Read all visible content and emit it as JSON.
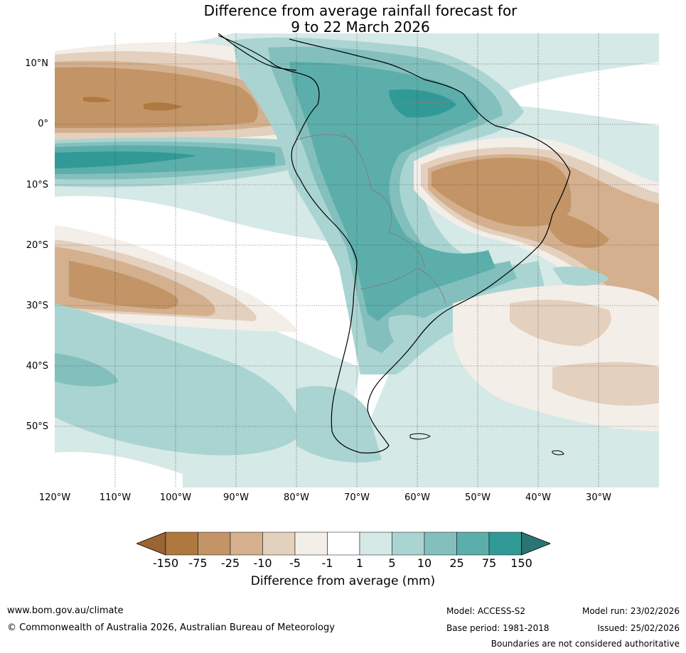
{
  "title": {
    "line1": "Difference from average rainfall forecast for",
    "line2": "9 to 22 March 2026"
  },
  "map": {
    "lat_labels": [
      "10°N",
      "0°",
      "10°S",
      "20°S",
      "30°S",
      "40°S",
      "50°S"
    ],
    "lon_labels": [
      "120°W",
      "110°W",
      "100°W",
      "90°W",
      "80°W",
      "70°W",
      "60°W",
      "50°W",
      "40°W",
      "30°W"
    ]
  },
  "colorbar": {
    "title": "Difference from average (mm)",
    "ticks": [
      "-150",
      "-75",
      "-25",
      "-10",
      "-5",
      "-1",
      "1",
      "5",
      "10",
      "25",
      "75",
      "150"
    ],
    "colors": [
      "#9c6333",
      "#ae783f",
      "#c29466",
      "#d4b08f",
      "#e4d0be",
      "#f3eee8",
      "#ffffff",
      "#d5e9e7",
      "#aad4d2",
      "#83c0bd",
      "#5caeab",
      "#319a96",
      "#2a7572"
    ]
  },
  "footer": {
    "website": "www.bom.gov.au/climate",
    "copyright": "© Commonwealth of Australia 2026, Australian Bureau of Meteorology",
    "model": "Model: ACCESS-S2",
    "base_period": "Base period: 1981-2018",
    "model_run": "Model run: 23/02/2026",
    "issued": "Issued: 25/02/2026",
    "disclaimer": "Boundaries are not considered authoritative"
  }
}
